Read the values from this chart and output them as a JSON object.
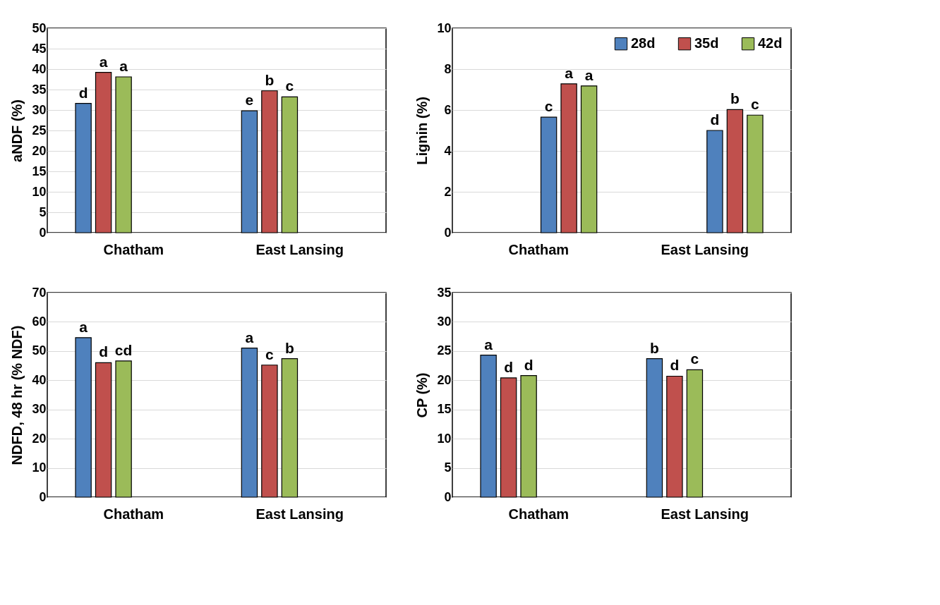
{
  "chart_data": [
    {
      "type": "bar",
      "ylabel": "aNDF (%)",
      "categories": [
        "Chatham",
        "East Lansing"
      ],
      "ylim": [
        0,
        50
      ],
      "yticks": [
        0,
        5,
        10,
        15,
        20,
        25,
        30,
        35,
        40,
        45,
        50
      ],
      "grid": "y",
      "series": [
        {
          "color": "#4f81bd",
          "values": [
            31.6,
            29.8
          ],
          "value_labels": [
            "d",
            "e"
          ]
        },
        {
          "color": "#c0504d",
          "values": [
            39.2,
            34.7
          ],
          "value_labels": [
            "a",
            "b"
          ]
        },
        {
          "color": "#9bbb59",
          "values": [
            38.1,
            33.2
          ],
          "value_labels": [
            "a",
            "c"
          ]
        }
      ]
    },
    {
      "type": "bar",
      "ylabel": "Lignin (%)",
      "categories": [
        "Chatham",
        "East Lansing"
      ],
      "ylim": [
        0,
        10
      ],
      "yticks": [
        0,
        2,
        4,
        6,
        8,
        10
      ],
      "grid": "y",
      "legend": "top right",
      "series": [
        {
          "name": "28d",
          "color": "#4f81bd",
          "values": [
            5.65,
            5.0
          ],
          "value_labels": [
            "c",
            "d"
          ]
        },
        {
          "name": "35d",
          "color": "#c0504d",
          "values": [
            7.28,
            6.02
          ],
          "value_labels": [
            "a",
            "b"
          ]
        },
        {
          "name": "42d",
          "color": "#9bbb59",
          "values": [
            7.18,
            5.75
          ],
          "value_labels": [
            "a",
            "c"
          ]
        }
      ]
    },
    {
      "type": "bar",
      "ylabel": "NDFD, 48 hr (% NDF)",
      "categories": [
        "Chatham",
        "East Lansing"
      ],
      "ylim": [
        0,
        70
      ],
      "yticks": [
        0,
        10,
        20,
        30,
        40,
        50,
        60,
        70
      ],
      "grid": "y",
      "series": [
        {
          "color": "#4f81bd",
          "values": [
            54.6,
            51.0
          ],
          "value_labels": [
            "a",
            "a"
          ]
        },
        {
          "color": "#c0504d",
          "values": [
            46.0,
            45.2
          ],
          "value_labels": [
            "d",
            "c"
          ]
        },
        {
          "color": "#9bbb59",
          "values": [
            46.6,
            47.4
          ],
          "value_labels": [
            "cd",
            "b"
          ]
        }
      ]
    },
    {
      "type": "bar",
      "ylabel": "CP (%)",
      "categories": [
        "Chatham",
        "East Lansing"
      ],
      "ylim": [
        0,
        35
      ],
      "yticks": [
        0,
        5,
        10,
        15,
        20,
        25,
        30,
        35
      ],
      "grid": "y",
      "series": [
        {
          "color": "#4f81bd",
          "values": [
            24.3,
            23.7
          ],
          "value_labels": [
            "a",
            "b"
          ]
        },
        {
          "color": "#c0504d",
          "values": [
            20.4,
            20.7
          ],
          "value_labels": [
            "d",
            "d"
          ]
        },
        {
          "color": "#9bbb59",
          "values": [
            20.8,
            21.8
          ],
          "value_labels": [
            "d",
            "c"
          ]
        }
      ]
    }
  ]
}
